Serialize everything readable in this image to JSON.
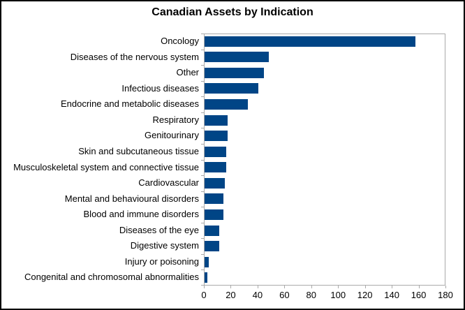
{
  "chart_data": {
    "type": "bar",
    "orientation": "horizontal",
    "title": "Canadian Assets by Indication",
    "categories": [
      "Oncology",
      "Diseases of the nervous system",
      "Other",
      "Infectious diseases",
      "Endocrine and metabolic diseases",
      "Respiratory",
      "Genitourinary",
      "Skin and subcutaneous tissue",
      "Musculoskeletal system and connective tissue",
      "Cardiovascular",
      "Mental and behavioural disorders",
      "Blood and immune disorders",
      "Diseases of the eye",
      "Digestive system",
      "Injury or poisoning",
      "Congenital and chromosomal abnormalities"
    ],
    "values": [
      157,
      48,
      44,
      40,
      32,
      17,
      17,
      16,
      16,
      15,
      14,
      14,
      11,
      11,
      3,
      2
    ],
    "xlabel": "",
    "ylabel": "",
    "xlim": [
      0,
      180
    ],
    "xticks": [
      0,
      20,
      40,
      60,
      80,
      100,
      120,
      140,
      160,
      180
    ],
    "grid": false,
    "legend": false,
    "colors": {
      "bar": "#004586",
      "axis": "#aaaaaa",
      "text": "#000000",
      "background": "#ffffff",
      "frame_border": "#000000"
    }
  }
}
